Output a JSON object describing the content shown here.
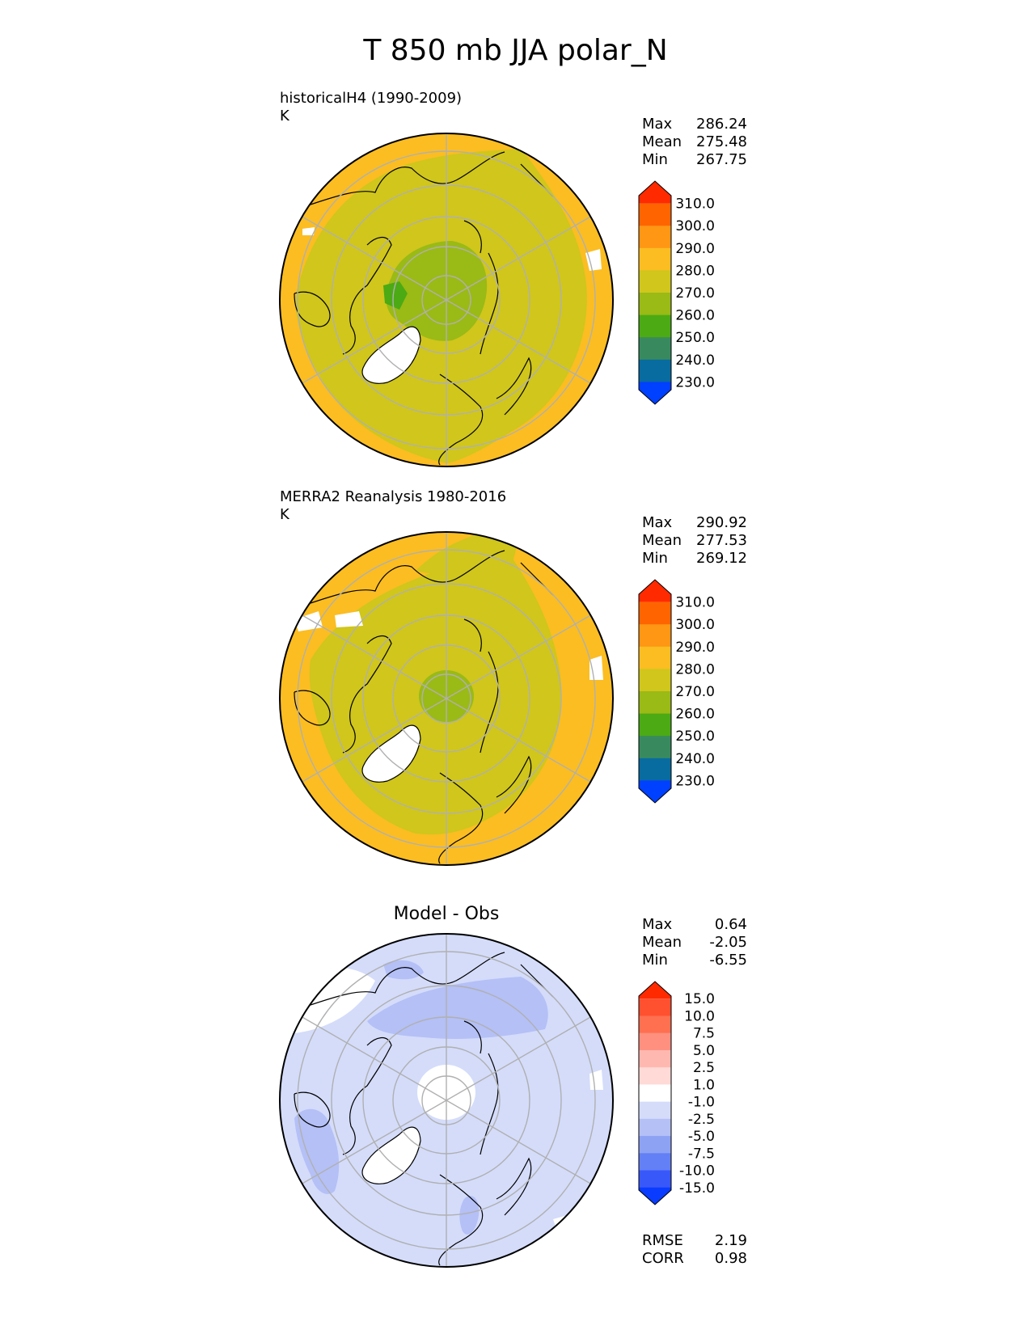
{
  "title": "T 850 mb JJA polar_N",
  "panels": [
    {
      "id": "test",
      "title_line1": "historicalH4 (1990-2009)",
      "title_line2": "K",
      "stats": {
        "max_label": "Max",
        "max": "286.24",
        "mean_label": "Mean",
        "mean": "275.48",
        "min_label": "Min",
        "min": "267.75"
      },
      "colorbar": {
        "levels": [
          "310.0",
          "300.0",
          "290.0",
          "280.0",
          "270.0",
          "260.0",
          "250.0",
          "240.0",
          "230.0"
        ],
        "colors": [
          "#ff2a00",
          "#ff6400",
          "#ff9614",
          "#fbbd22",
          "#d0c61c",
          "#9aba16",
          "#4caa14",
          "#388a5e",
          "#086ca0",
          "#0040ff"
        ]
      }
    },
    {
      "id": "reference",
      "title_line1": "MERRA2 Reanalysis 1980-2016",
      "title_line2": "K",
      "stats": {
        "max_label": "Max",
        "max": "290.92",
        "mean_label": "Mean",
        "mean": "277.53",
        "min_label": "Min",
        "min": "269.12"
      },
      "colorbar": {
        "levels": [
          "310.0",
          "300.0",
          "290.0",
          "280.0",
          "270.0",
          "260.0",
          "250.0",
          "240.0",
          "230.0"
        ],
        "colors": [
          "#ff2a00",
          "#ff6400",
          "#ff9614",
          "#fbbd22",
          "#d0c61c",
          "#9aba16",
          "#4caa14",
          "#388a5e",
          "#086ca0",
          "#0040ff"
        ]
      }
    },
    {
      "id": "diff",
      "center_title": "Model - Obs",
      "stats": {
        "max_label": "Max",
        "max": "0.64",
        "mean_label": "Mean",
        "mean": "-2.05",
        "min_label": "Min",
        "min": "-6.55"
      },
      "colorbar": {
        "levels": [
          "15.0",
          "10.0",
          "7.5",
          "5.0",
          "2.5",
          "1.0",
          "-1.0",
          "-2.5",
          "-5.0",
          "-7.5",
          "-10.0",
          "-15.0"
        ],
        "colors": [
          "#ff2a00",
          "#ff5030",
          "#ff7050",
          "#ff9080",
          "#ffb8b0",
          "#ffdad6",
          "#ffffff",
          "#d4dcfa",
          "#b4c0f6",
          "#8ea2f4",
          "#6480f6",
          "#3858fa",
          "#0a3cff"
        ]
      },
      "metrics": {
        "rmse_label": "RMSE",
        "rmse": "2.19",
        "corr_label": "CORR",
        "corr": "0.98"
      }
    }
  ]
}
